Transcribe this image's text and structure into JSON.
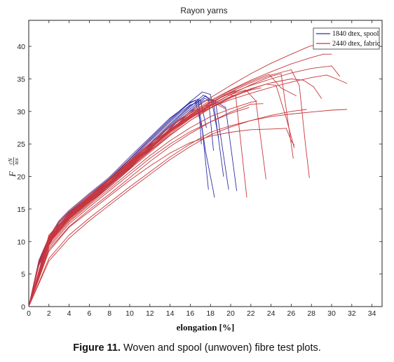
{
  "chart_data": {
    "type": "line",
    "title": "Rayon yarns",
    "xlabel": "elongation [%]",
    "ylabel": "F",
    "ylabel_fraction": {
      "numerator": "cN",
      "denominator": "tex"
    },
    "xlim": [
      0,
      35
    ],
    "ylim": [
      0,
      44
    ],
    "xticks": [
      "0",
      "2",
      "4",
      "6",
      "8",
      "10",
      "12",
      "14",
      "16",
      "18",
      "20",
      "22",
      "24",
      "26",
      "28",
      "30",
      "32",
      "34"
    ],
    "yticks": [
      "0",
      "5",
      "10",
      "15",
      "20",
      "25",
      "30",
      "35",
      "40"
    ],
    "legend_position": "top-right",
    "legend": [
      {
        "label": "1840 dtex, spool",
        "color": "#2f2fa6"
      },
      {
        "label": "2440 dtex, fabric",
        "color": "#c8373c"
      }
    ],
    "spool_color": "#2f2fa6",
    "fabric_color": "#c8373c",
    "series": [
      {
        "group": "spool",
        "x": [
          0,
          1,
          2,
          3,
          4,
          6,
          8,
          10,
          12,
          14,
          15,
          16,
          16.5,
          17.2,
          17.8
        ],
        "y": [
          0,
          7,
          10.5,
          13,
          14.6,
          17.2,
          19.6,
          22.6,
          25.6,
          28.6,
          30,
          31.4,
          31.7,
          27,
          18
        ]
      },
      {
        "group": "spool",
        "x": [
          0,
          1,
          2,
          3,
          4,
          6,
          8,
          10,
          12,
          14,
          15,
          16,
          16.8,
          17.5,
          18.4
        ],
        "y": [
          0,
          6.8,
          10.2,
          12.6,
          14.3,
          17,
          19.4,
          22.4,
          25.4,
          28.4,
          29.8,
          31,
          31.4,
          24,
          16.8
        ]
      },
      {
        "group": "spool",
        "x": [
          0,
          1,
          2,
          3,
          4,
          6,
          8,
          10,
          12,
          14,
          16,
          17.3,
          17.8,
          18.3
        ],
        "y": [
          0,
          6.6,
          10,
          12.4,
          14,
          16.6,
          19,
          21.9,
          24.9,
          27.9,
          30.7,
          32.5,
          32,
          24
        ]
      },
      {
        "group": "spool",
        "x": [
          0,
          1,
          2,
          3,
          4,
          6,
          8,
          10,
          12,
          14,
          16,
          17.5,
          18.3,
          19.3
        ],
        "y": [
          0,
          6.5,
          9.8,
          12.2,
          13.8,
          16.4,
          18.8,
          21.7,
          24.7,
          27.7,
          30.4,
          32.4,
          31.5,
          20
        ]
      },
      {
        "group": "spool",
        "x": [
          0,
          1,
          2,
          3,
          4,
          6,
          8,
          10,
          12,
          14,
          16,
          17.4,
          18.5,
          19.8
        ],
        "y": [
          0,
          6.4,
          9.7,
          12,
          13.6,
          16.2,
          18.6,
          21.4,
          24.4,
          27.4,
          30.1,
          32,
          31.5,
          18
        ]
      },
      {
        "group": "spool",
        "x": [
          0,
          1,
          2,
          3,
          4,
          6,
          8,
          10,
          12,
          14,
          16,
          17.2,
          18,
          18.8
        ],
        "y": [
          0,
          6.9,
          10.4,
          12.9,
          14.5,
          17.2,
          19.7,
          22.7,
          25.8,
          28.8,
          31.5,
          33,
          32.6,
          26
        ]
      },
      {
        "group": "spool",
        "x": [
          0,
          1,
          2,
          3,
          4,
          6,
          8,
          10,
          12,
          14,
          16,
          17.3,
          18.2,
          19.5,
          20.6
        ],
        "y": [
          0,
          6.3,
          9.5,
          11.8,
          13.4,
          16,
          18.4,
          21.2,
          24.1,
          27.1,
          29.8,
          31.6,
          31.8,
          30.6,
          17.8
        ]
      },
      {
        "group": "spool",
        "x": [
          0,
          1,
          2,
          3,
          4,
          6,
          8,
          10,
          12,
          14,
          16,
          17,
          17.6
        ],
        "y": [
          0,
          6.7,
          10.1,
          12.5,
          14.1,
          16.8,
          19.2,
          22.1,
          25.1,
          28.1,
          30.9,
          31.8,
          27.5
        ]
      },
      {
        "group": "spool",
        "x": [
          0,
          1,
          2,
          3,
          4,
          6,
          8,
          10,
          12,
          14,
          16,
          16.8,
          17.1
        ],
        "y": [
          0,
          7.1,
          10.7,
          13.2,
          14.8,
          17.4,
          19.9,
          23,
          26,
          29,
          31.3,
          31.9,
          25
        ]
      },
      {
        "group": "fabric",
        "x": [
          0,
          2,
          4,
          6,
          8,
          10,
          12,
          14,
          16,
          18,
          20,
          22,
          24,
          26,
          27.5
        ],
        "y": [
          0,
          7,
          10.5,
          13.2,
          15.6,
          18,
          20.3,
          22.6,
          24.6,
          26.4,
          27.6,
          28.6,
          29.4,
          30,
          30.3
        ]
      },
      {
        "group": "fabric",
        "x": [
          0,
          2,
          4,
          6,
          8,
          10,
          12,
          14,
          16,
          18,
          20,
          22,
          24,
          26,
          28,
          30,
          31.5
        ],
        "y": [
          0,
          7.4,
          11,
          13.6,
          16,
          18.4,
          20.7,
          23,
          25,
          26.8,
          27.8,
          28.6,
          29.2,
          29.6,
          29.9,
          30.2,
          30.3
        ]
      },
      {
        "group": "fabric",
        "x": [
          0,
          2,
          4,
          6,
          8,
          10,
          12,
          14,
          16,
          18,
          20,
          22,
          24,
          25.5,
          26,
          26.3
        ],
        "y": [
          0,
          8.5,
          12.2,
          14.6,
          17,
          19.4,
          21.6,
          23.6,
          25.2,
          26.2,
          26.8,
          27.2,
          27.3,
          27.4,
          25.5,
          24.8
        ]
      },
      {
        "group": "fabric",
        "x": [
          0,
          2,
          4,
          6,
          8,
          10,
          12,
          14,
          16,
          18,
          20,
          22,
          24,
          26,
          28,
          29.5,
          30.5,
          31.5
        ],
        "y": [
          0,
          11,
          14.3,
          16.8,
          19.4,
          22,
          24.6,
          27,
          29,
          30.6,
          31.8,
          32.8,
          33.7,
          34.5,
          35.2,
          35.6,
          35,
          34.3
        ]
      },
      {
        "group": "fabric",
        "x": [
          0,
          2,
          4,
          6,
          8,
          10,
          12,
          14,
          16,
          18,
          20,
          22,
          24,
          26,
          28,
          30,
          30.8
        ],
        "y": [
          0,
          10.8,
          14.4,
          17,
          19.6,
          22.4,
          25.1,
          27.6,
          29.7,
          31.4,
          32.8,
          34,
          35,
          35.9,
          36.6,
          37,
          35.4
        ]
      },
      {
        "group": "fabric",
        "x": [
          0,
          2,
          4,
          6,
          8,
          10,
          12,
          14,
          16,
          18,
          20,
          22,
          24,
          26,
          28,
          29.2,
          30
        ],
        "y": [
          0,
          10.5,
          14.2,
          16.9,
          19.5,
          22.3,
          25,
          27.6,
          29.8,
          31.7,
          33.3,
          34.8,
          36.1,
          37.3,
          38.3,
          38.8,
          38.8
        ]
      },
      {
        "group": "fabric",
        "x": [
          0,
          2,
          4,
          6,
          8,
          10,
          12,
          14,
          16,
          18,
          20,
          22,
          24,
          26,
          27.8,
          28.6
        ],
        "y": [
          0,
          10.3,
          14,
          16.7,
          19.4,
          22.2,
          25,
          27.7,
          30,
          32.1,
          34,
          35.8,
          37.4,
          38.8,
          40,
          40.3
        ]
      },
      {
        "group": "fabric",
        "x": [
          0,
          2,
          4,
          6,
          8,
          10,
          12,
          14,
          16,
          18,
          20,
          22,
          24,
          26,
          26.8,
          27.4,
          27.8
        ],
        "y": [
          0,
          10.1,
          13.8,
          16.4,
          19,
          21.8,
          24.5,
          27.1,
          29.4,
          31.3,
          33,
          34.4,
          35.6,
          36.4,
          34,
          25,
          19.8
        ]
      },
      {
        "group": "fabric",
        "x": [
          0,
          2,
          4,
          6,
          8,
          10,
          12,
          14,
          16,
          18,
          20,
          22,
          24,
          25,
          26.2
        ],
        "y": [
          0,
          10,
          13.6,
          16.2,
          18.8,
          21.5,
          24.2,
          26.8,
          29,
          30.9,
          32.6,
          34.1,
          35.4,
          35.8,
          22.8
        ]
      },
      {
        "group": "fabric",
        "x": [
          0,
          2,
          4,
          6,
          8,
          10,
          12,
          14,
          16,
          18,
          20,
          21.5,
          22.5,
          23.5
        ],
        "y": [
          0,
          10.2,
          13.7,
          16.3,
          18.9,
          21.6,
          24.3,
          26.9,
          29.1,
          31,
          32.6,
          33.3,
          31.6,
          19.6
        ]
      },
      {
        "group": "fabric",
        "x": [
          0,
          2,
          4,
          6,
          8,
          10,
          12,
          14,
          16,
          18,
          19.5,
          20.5,
          21.6
        ],
        "y": [
          0,
          10.4,
          13.9,
          16.5,
          19.1,
          21.8,
          24.4,
          27,
          29.2,
          31.1,
          32.6,
          32.4,
          16.8
        ]
      },
      {
        "group": "fabric",
        "x": [
          0,
          2,
          4,
          6,
          8,
          10,
          12,
          14,
          16,
          18,
          20,
          22,
          23.5,
          24.5,
          25.5,
          26.3
        ],
        "y": [
          0,
          9.8,
          13.4,
          16,
          18.6,
          21.3,
          23.9,
          26.4,
          28.6,
          30.5,
          32.1,
          33.4,
          34.2,
          34,
          29,
          24.4
        ]
      },
      {
        "group": "fabric",
        "x": [
          0,
          2,
          4,
          6,
          8,
          10,
          12,
          14,
          16,
          18,
          20,
          22,
          24,
          26,
          27.2,
          28.2,
          29
        ],
        "y": [
          0,
          9.9,
          13.5,
          16.1,
          18.7,
          21.4,
          24,
          26.6,
          28.9,
          30.8,
          32.3,
          33.5,
          34.4,
          35,
          34.8,
          33.8,
          32
        ]
      },
      {
        "group": "fabric",
        "x": [
          0,
          2,
          4,
          6,
          8,
          10,
          12,
          14,
          16,
          18,
          20,
          22,
          23
        ],
        "y": [
          0,
          9.7,
          13.2,
          15.8,
          18.4,
          21.1,
          23.7,
          26.3,
          28.6,
          30.6,
          32.2,
          33.3,
          33.6
        ]
      },
      {
        "group": "fabric",
        "x": [
          0,
          2,
          4,
          6,
          8,
          10,
          12,
          14,
          16,
          18,
          19.5,
          20.5
        ],
        "y": [
          0,
          10.1,
          13.8,
          16.4,
          19,
          21.7,
          24.4,
          27,
          29.3,
          31.3,
          32.6,
          33.2
        ]
      },
      {
        "group": "fabric",
        "x": [
          0,
          2,
          4,
          6,
          8,
          10,
          12,
          14,
          16,
          18,
          20,
          22,
          23.8,
          25,
          26.5
        ],
        "y": [
          0,
          10.6,
          14.2,
          16.8,
          19.4,
          22.1,
          24.8,
          27.3,
          29.5,
          31.5,
          33.2,
          34.6,
          35.7,
          33.6,
          32.4
        ]
      },
      {
        "group": "fabric",
        "x": [
          0,
          2,
          4,
          6,
          8,
          10,
          12,
          14,
          16,
          18,
          20,
          22,
          23.2
        ],
        "y": [
          0,
          8.8,
          12.3,
          14.9,
          17.3,
          19.8,
          22.3,
          24.6,
          26.6,
          28.4,
          29.9,
          31.1,
          31.2
        ]
      },
      {
        "group": "fabric",
        "x": [
          0,
          2,
          4,
          6,
          8,
          10,
          12,
          14,
          16,
          18,
          20,
          22,
          22.6
        ],
        "y": [
          0,
          9.4,
          13,
          15.6,
          18.1,
          20.7,
          23.2,
          25.5,
          27.5,
          29.2,
          30.4,
          31.4,
          31.6
        ]
      },
      {
        "group": "fabric",
        "x": [
          0,
          2,
          4,
          6,
          8,
          10,
          12,
          14,
          16,
          17.5,
          18.5,
          19.5
        ],
        "y": [
          0,
          10.4,
          14,
          16.6,
          19.2,
          21.9,
          24.6,
          27.2,
          29.4,
          30.8,
          31.2,
          30.4
        ]
      },
      {
        "group": "fabric",
        "x": [
          0,
          2,
          4,
          6,
          8,
          10,
          12,
          14,
          16,
          18,
          20,
          21.8
        ],
        "y": [
          0,
          9.1,
          12.7,
          15.3,
          17.8,
          20.3,
          22.8,
          25,
          26.9,
          28.4,
          29.7,
          30.6
        ]
      }
    ]
  },
  "caption": {
    "label": "Figure 11.",
    "text": " Woven and spool (unwoven) fibre test plots."
  }
}
